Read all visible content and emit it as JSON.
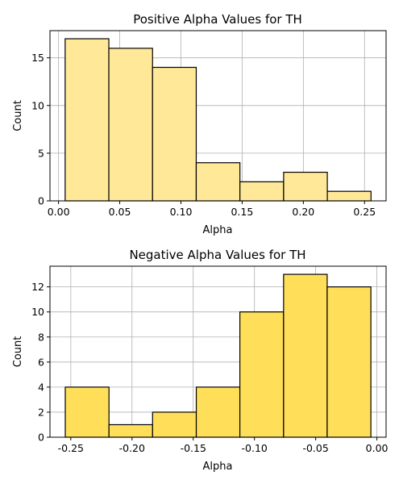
{
  "chart_data": [
    {
      "type": "bar",
      "title": "Positive Alpha Values for TH",
      "xlabel": "Alpha",
      "ylabel": "Count",
      "color": "#FFE897",
      "edge_color": "#000000",
      "grid": true,
      "bin_edges": [
        0.0054,
        0.0411,
        0.0768,
        0.1125,
        0.1482,
        0.1839,
        0.2196,
        0.2553
      ],
      "values": [
        17,
        16,
        14,
        4,
        2,
        3,
        1
      ],
      "xlim": [
        -0.007,
        0.2676
      ],
      "ylim": [
        0,
        17.85
      ],
      "xticks": [
        0.0,
        0.05,
        0.1,
        0.15,
        0.2,
        0.25
      ],
      "xtick_labels": [
        "0.00",
        "0.05",
        "0.10",
        "0.15",
        "0.20",
        "0.25"
      ],
      "yticks": [
        0,
        5,
        10,
        15
      ],
      "ytick_labels": [
        "0",
        "5",
        "10",
        "15"
      ]
    },
    {
      "type": "bar",
      "title": "Negative Alpha Values for TH",
      "xlabel": "Alpha",
      "ylabel": "Count",
      "color": "#FFDF5A",
      "edge_color": "#000000",
      "grid": true,
      "bin_edges": [
        -0.2545,
        -0.2188,
        -0.1832,
        -0.1475,
        -0.1119,
        -0.0762,
        -0.0406,
        -0.0049
      ],
      "values": [
        4,
        1,
        2,
        4,
        10,
        13,
        12
      ],
      "xlim": [
        -0.267,
        0.0075
      ],
      "ylim": [
        0,
        13.65
      ],
      "xticks": [
        -0.25,
        -0.2,
        -0.15,
        -0.1,
        -0.05,
        0.0
      ],
      "xtick_labels": [
        "-0.25",
        "-0.20",
        "-0.15",
        "-0.10",
        "-0.05",
        "0.00"
      ],
      "yticks": [
        0,
        2,
        4,
        6,
        8,
        10,
        12
      ],
      "ytick_labels": [
        "0",
        "2",
        "4",
        "6",
        "8",
        "10",
        "12"
      ]
    }
  ]
}
